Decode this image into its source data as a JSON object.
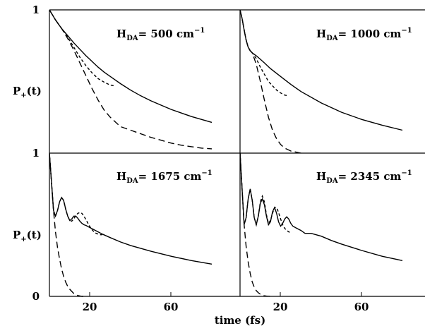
{
  "chart_data": {
    "type": "line",
    "xlabel": "time (fs)",
    "ylabel_main": "P",
    "ylabel_sub": "+",
    "ylabel_suffix": "(t)",
    "xlim": [
      0,
      80
    ],
    "ylim": [
      0,
      1
    ],
    "x_ticks": [
      "20",
      "60"
    ],
    "y_ticks": [
      "0",
      "1"
    ],
    "annotation_prefix": "H",
    "annotation_sub": "DA",
    "annotation_unit": "cm",
    "annotation_exp": "−1",
    "panels": [
      {
        "label": "500",
        "series": [
          {
            "style": "solid",
            "x": [
              0,
              3,
              6,
              9,
              12,
              15,
              18,
              21,
              24,
              27,
              30,
              35,
              40,
              45,
              50,
              55,
              60,
              65,
              70,
              75,
              80
            ],
            "y": [
              1.0,
              0.93,
              0.87,
              0.82,
              0.77,
              0.725,
              0.68,
              0.64,
              0.6,
              0.565,
              0.535,
              0.485,
              0.44,
              0.4,
              0.365,
              0.335,
              0.305,
              0.28,
              0.255,
              0.235,
              0.215
            ]
          },
          {
            "style": "short-dash",
            "x": [
              0,
              3,
              6,
              9,
              12,
              15,
              18,
              21,
              24,
              27,
              30,
              32
            ],
            "y": [
              1.0,
              0.93,
              0.87,
              0.81,
              0.74,
              0.67,
              0.61,
              0.56,
              0.52,
              0.495,
              0.475,
              0.47
            ]
          },
          {
            "style": "long-dash",
            "x": [
              0,
              3,
              6,
              9,
              12,
              15,
              18,
              21,
              24,
              27,
              30,
              35,
              40,
              45,
              50,
              55,
              60,
              65,
              70,
              75,
              80
            ],
            "y": [
              1.0,
              0.93,
              0.87,
              0.8,
              0.72,
              0.63,
              0.54,
              0.45,
              0.37,
              0.3,
              0.25,
              0.185,
              0.16,
              0.135,
              0.11,
              0.09,
              0.07,
              0.055,
              0.045,
              0.035,
              0.03
            ]
          }
        ]
      },
      {
        "label": "1000",
        "series": [
          {
            "style": "solid",
            "x": [
              0,
              1,
              2,
              3,
              4,
              5,
              6,
              8,
              10,
              12,
              15,
              20,
              25,
              30,
              40,
              50,
              60,
              70,
              80
            ],
            "y": [
              1.0,
              0.94,
              0.86,
              0.79,
              0.74,
              0.715,
              0.7,
              0.68,
              0.655,
              0.63,
              0.59,
              0.535,
              0.48,
              0.43,
              0.35,
              0.285,
              0.235,
              0.195,
              0.16
            ]
          },
          {
            "style": "short-dash",
            "x": [
              0,
              1,
              2,
              3,
              4,
              5,
              6,
              8,
              10,
              12,
              14,
              16,
              18,
              20,
              22,
              24
            ],
            "y": [
              1.0,
              0.94,
              0.86,
              0.79,
              0.74,
              0.715,
              0.7,
              0.66,
              0.6,
              0.55,
              0.5,
              0.47,
              0.44,
              0.42,
              0.405,
              0.4
            ]
          },
          {
            "style": "long-dash",
            "x": [
              0,
              1,
              2,
              3,
              4,
              5,
              6,
              8,
              10,
              12,
              14,
              16,
              18,
              20,
              22,
              25,
              30
            ],
            "y": [
              1.0,
              0.94,
              0.86,
              0.79,
              0.74,
              0.715,
              0.7,
              0.62,
              0.5,
              0.37,
              0.25,
              0.16,
              0.1,
              0.06,
              0.035,
              0.015,
              0.0
            ]
          }
        ]
      },
      {
        "label": "1675",
        "series": [
          {
            "style": "solid",
            "x": [
              0,
              1,
              2,
              3,
              4,
              5,
              6,
              7,
              8,
              9,
              10,
              11,
              12,
              13,
              14,
              15,
              16,
              17,
              18,
              20,
              22,
              24,
              26,
              30,
              35,
              40,
              50,
              60,
              70,
              80
            ],
            "y": [
              1.0,
              0.8,
              0.6,
              0.56,
              0.6,
              0.66,
              0.69,
              0.67,
              0.61,
              0.56,
              0.53,
              0.54,
              0.56,
              0.56,
              0.545,
              0.525,
              0.51,
              0.5,
              0.495,
              0.48,
              0.465,
              0.45,
              0.435,
              0.41,
              0.38,
              0.355,
              0.315,
              0.28,
              0.25,
              0.225
            ]
          },
          {
            "style": "short-dash",
            "x": [
              0,
              1,
              2,
              3,
              4,
              5,
              6,
              7,
              8,
              9,
              10,
              11,
              12,
              13,
              14,
              15,
              16,
              17,
              18,
              19,
              20,
              21,
              22,
              23,
              24,
              25,
              26
            ],
            "y": [
              1.0,
              0.8,
              0.6,
              0.56,
              0.6,
              0.66,
              0.69,
              0.67,
              0.61,
              0.56,
              0.53,
              0.525,
              0.54,
              0.565,
              0.58,
              0.585,
              0.58,
              0.56,
              0.535,
              0.51,
              0.485,
              0.465,
              0.45,
              0.44,
              0.435,
              0.43,
              0.43
            ]
          },
          {
            "style": "long-dash",
            "x": [
              0,
              1,
              2,
              3,
              4,
              5,
              6,
              7,
              8,
              9,
              10,
              11,
              12,
              13,
              14,
              15,
              16,
              18
            ],
            "y": [
              1.0,
              0.8,
              0.6,
              0.45,
              0.34,
              0.26,
              0.19,
              0.14,
              0.1,
              0.07,
              0.05,
              0.035,
              0.02,
              0.012,
              0.006,
              0.003,
              0.0,
              0.0
            ]
          }
        ]
      },
      {
        "label": "2345",
        "series": [
          {
            "style": "solid",
            "x": [
              0,
              1,
              2,
              3,
              4,
              5,
              6,
              7,
              8,
              9,
              10,
              11,
              12,
              13,
              14,
              15,
              16,
              17,
              18,
              19,
              20,
              21,
              22,
              23,
              24,
              25,
              26,
              28,
              30,
              32,
              35,
              40,
              45,
              50,
              60,
              70,
              80
            ],
            "y": [
              1.0,
              0.75,
              0.5,
              0.55,
              0.68,
              0.75,
              0.67,
              0.55,
              0.5,
              0.56,
              0.65,
              0.68,
              0.64,
              0.56,
              0.5,
              0.52,
              0.59,
              0.62,
              0.58,
              0.52,
              0.49,
              0.51,
              0.54,
              0.555,
              0.54,
              0.51,
              0.49,
              0.475,
              0.46,
              0.44,
              0.44,
              0.42,
              0.39,
              0.365,
              0.32,
              0.28,
              0.25
            ]
          },
          {
            "style": "short-dash",
            "x": [
              0,
              1,
              2,
              3,
              4,
              5,
              6,
              7,
              8,
              9,
              10,
              11,
              12,
              13,
              14,
              15,
              16,
              17,
              18,
              19,
              20,
              21,
              22,
              23,
              24,
              25
            ],
            "y": [
              1.0,
              0.75,
              0.5,
              0.55,
              0.68,
              0.75,
              0.67,
              0.55,
              0.5,
              0.56,
              0.66,
              0.7,
              0.66,
              0.57,
              0.51,
              0.53,
              0.58,
              0.62,
              0.62,
              0.585,
              0.54,
              0.5,
              0.475,
              0.46,
              0.45,
              0.445
            ]
          },
          {
            "style": "long-dash",
            "x": [
              0,
              1,
              2,
              3,
              4,
              5,
              6,
              7,
              8,
              9,
              10,
              11,
              12,
              13,
              14,
              15,
              16
            ],
            "y": [
              1.0,
              0.75,
              0.5,
              0.35,
              0.24,
              0.16,
              0.1,
              0.065,
              0.04,
              0.025,
              0.015,
              0.008,
              0.004,
              0.002,
              0.001,
              0.0,
              0.0
            ]
          }
        ]
      }
    ]
  }
}
